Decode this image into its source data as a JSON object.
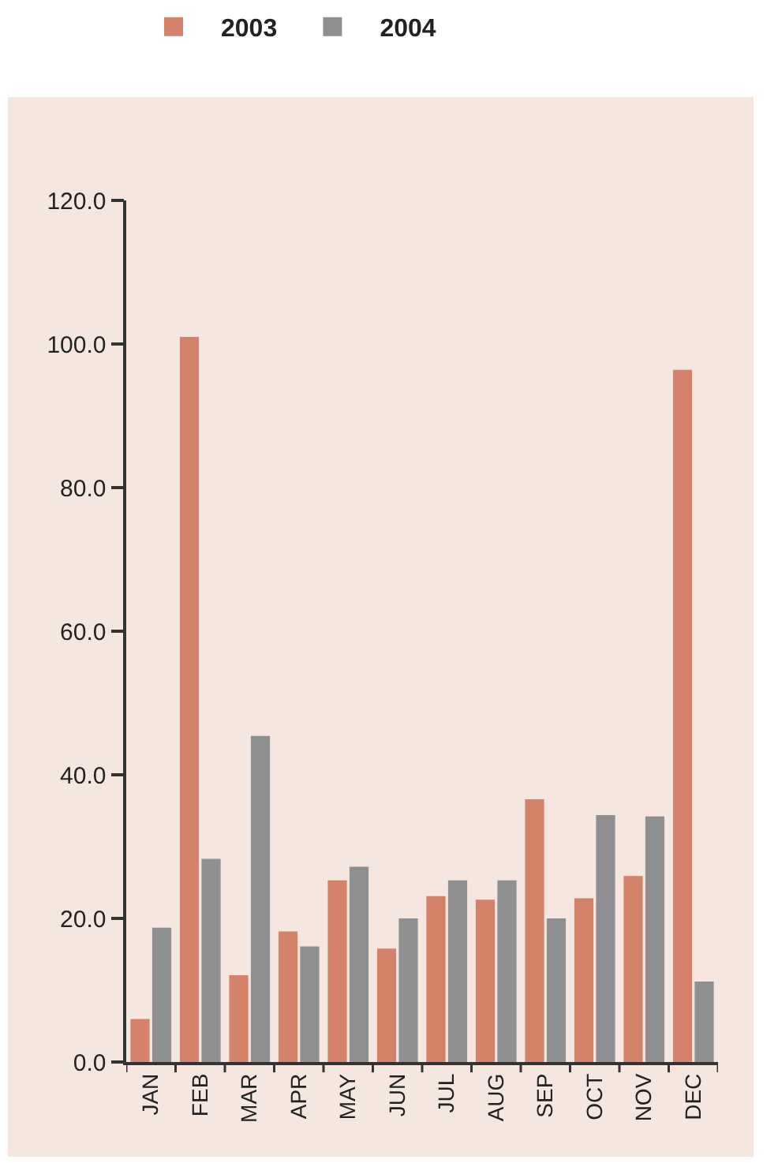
{
  "chart_data": {
    "type": "bar",
    "categories": [
      "JAN",
      "FEB",
      "MAR",
      "APR",
      "MAY",
      "JUN",
      "JUL",
      "AUG",
      "SEP",
      "OCT",
      "NOV",
      "DEC"
    ],
    "series": [
      {
        "name": "2003",
        "color": "#d4826a",
        "values": [
          6.0,
          101.0,
          12.1,
          18.2,
          25.3,
          15.8,
          23.1,
          22.6,
          36.6,
          22.8,
          25.9,
          96.4
        ]
      },
      {
        "name": "2004",
        "color": "#8e8f91",
        "values": [
          18.7,
          28.3,
          45.4,
          16.1,
          27.2,
          20.0,
          25.3,
          25.3,
          20.0,
          34.4,
          34.2,
          11.2
        ]
      }
    ],
    "ylim": [
      0,
      120
    ],
    "yticks": [
      {
        "value": 0,
        "label": "0.0"
      },
      {
        "value": 20,
        "label": "20.0"
      },
      {
        "value": 40,
        "label": "40.0"
      },
      {
        "value": 60,
        "label": "60.0"
      },
      {
        "value": 80,
        "label": "80.0"
      },
      {
        "value": 100,
        "label": "100.0"
      },
      {
        "value": 120,
        "label": "120.0"
      }
    ],
    "grid": false,
    "legend": "top left"
  }
}
